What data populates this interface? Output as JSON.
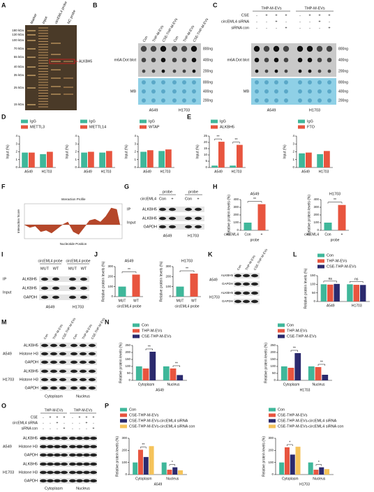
{
  "panel_letters": [
    "A",
    "B",
    "C",
    "D",
    "E",
    "F",
    "G",
    "H",
    "I",
    "J",
    "K",
    "L",
    "M",
    "N",
    "O",
    "P"
  ],
  "A": {
    "lanes": [
      "Marker",
      "Input",
      "circEML4 probe",
      "NC probe"
    ],
    "markers": [
      "180 kDa",
      "130 kDa",
      "100 kDa",
      "70 kDa",
      "55 kDa",
      "40 kDa",
      "35 kDa",
      "25 kDa",
      "15 kDa"
    ],
    "band_label": "ALKBH5"
  },
  "B": {
    "columns": [
      "Con",
      "THP-M-EVs",
      "CSE-THP-M-EVs",
      "Con",
      "THP-M-EVs",
      "CSE-THP-M-EVs"
    ],
    "rows": [
      "m6A Dot blot",
      "MB"
    ],
    "amounts": [
      "800ng",
      "400ng",
      "200ng",
      "800ng",
      "400ng",
      "200ng"
    ],
    "cells": [
      "A549",
      "H1703"
    ]
  },
  "C": {
    "groups": [
      "THP-M-EVs",
      "THP-M-EVs"
    ],
    "conditions": [
      {
        "label": "CSE",
        "signs": [
          "-",
          "+",
          "+",
          "+",
          "-",
          "+",
          "+",
          "+"
        ]
      },
      {
        "label": "circEML4 siRNA",
        "signs": [
          "-",
          "-",
          "+",
          "-",
          "-",
          "-",
          "+",
          "-"
        ]
      },
      {
        "label": "siRNA con",
        "signs": [
          "-",
          "-",
          "-",
          "+",
          "-",
          "-",
          "-",
          "+"
        ]
      }
    ],
    "rows": [
      "m6A Dot blot",
      "MB"
    ],
    "amounts": [
      "800ng",
      "400ng",
      "200ng",
      "800ng",
      "400ng",
      "200ng"
    ],
    "cells": [
      "A549",
      "H1703"
    ]
  },
  "G": {
    "headers": [
      "probe",
      "probe"
    ],
    "condition": "circEML4",
    "lanes": [
      "Con",
      "+",
      "Con",
      "+"
    ],
    "sections": [
      "IP",
      "Input"
    ],
    "bands": [
      "ALKBH5",
      "ALKBH5",
      "GAPDH"
    ],
    "cells": [
      "A549",
      "H1703"
    ]
  },
  "I": {
    "headers": [
      "circEML4 probe",
      "circEML4 probe"
    ],
    "lanes": [
      "MUT",
      "WT",
      "MUT",
      "WT"
    ],
    "sections": [
      "IP",
      "Input"
    ],
    "bands": [
      "ALKBH5",
      "ALKBH5",
      "GAPDH"
    ],
    "cells": [
      "A549",
      "H1703"
    ]
  },
  "K": {
    "lanes": [
      "Con",
      "THP-M-EVs",
      "CSE-THP-M-EVs"
    ],
    "cells": [
      "A549",
      "H1703"
    ],
    "bands": [
      "ALKBH5",
      "GAPDH",
      "ALKBH5",
      "GAPDH"
    ]
  },
  "M": {
    "lanes": [
      "Con",
      "THP-M-EVs",
      "CSE-THP-M-EVs",
      "Con",
      "THP-M-EVs",
      "CSE-THP-M-EVs"
    ],
    "cells": [
      "A549",
      "H1703"
    ],
    "bands": [
      "ALKBH5",
      "Histone H3",
      "GAPDH",
      "ALKBH5",
      "Histone H3",
      "GAPDH"
    ],
    "fractions": [
      "Cytoplasm",
      "Nucleus"
    ]
  },
  "O": {
    "groups": [
      "THP-M-EVs",
      "THP-M-EVs"
    ],
    "conditions": [
      {
        "label": "CSE",
        "signs": [
          "-",
          "+",
          "+",
          "+",
          "-",
          "+",
          "+",
          "+"
        ]
      },
      {
        "label": "circEML4 siRNA",
        "signs": [
          "-",
          "-",
          "+",
          "-",
          "-",
          "-",
          "+",
          "-"
        ]
      },
      {
        "label": "siRNA con",
        "signs": [
          "-",
          "-",
          "-",
          "+",
          "-",
          "-",
          "-",
          "+"
        ]
      }
    ],
    "cells": [
      "A549",
      "H1703"
    ],
    "bands": [
      "ALKBH5",
      "Histone H3",
      "GAPDH",
      "ALKBH5",
      "Histone H3",
      "GAPDH"
    ],
    "fractions": [
      "Cytoplasm",
      "Nucleus"
    ]
  },
  "chart_data": [
    {
      "type": "bar",
      "ylabel": "Input (%)",
      "categories": [
        "A549",
        "H1703"
      ],
      "series": [
        {
          "name": "IgG",
          "color": "#3fb79a",
          "values": [
            1.9,
            1.7
          ]
        },
        {
          "name": "METTL3",
          "color": "#e8553f",
          "values": [
            1.9,
            2.0
          ]
        }
      ],
      "ylim": [
        0,
        4
      ],
      "yticks": [
        0,
        1,
        2,
        3,
        4
      ]
    },
    {
      "type": "bar",
      "ylabel": "Input (%)",
      "categories": [
        "A549",
        "H1703"
      ],
      "series": [
        {
          "name": "IgG",
          "color": "#3fb79a",
          "values": [
            1.9,
            1.9
          ]
        },
        {
          "name": "METTL14",
          "color": "#e8553f",
          "values": [
            2.0,
            2.1
          ]
        }
      ],
      "ylim": [
        0,
        4
      ],
      "yticks": [
        0,
        1,
        2,
        3,
        4
      ]
    },
    {
      "type": "bar",
      "ylabel": "Input (%)",
      "categories": [
        "A549",
        "H1703"
      ],
      "series": [
        {
          "name": "IgG",
          "color": "#3fb79a",
          "values": [
            2.0,
            2.1
          ]
        },
        {
          "name": "WTAP",
          "color": "#e8553f",
          "values": [
            2.2,
            2.3
          ]
        }
      ],
      "ylim": [
        0,
        4
      ],
      "yticks": [
        0,
        1,
        2,
        3,
        4
      ]
    },
    {
      "type": "bar",
      "ylabel": "Input (%)",
      "categories": [
        "A549",
        "H1703"
      ],
      "series": [
        {
          "name": "IgG",
          "color": "#3fb79a",
          "values": [
            1.5,
            1.5
          ]
        },
        {
          "name": "ALKBH5",
          "color": "#e8553f",
          "values": [
            20.5,
            18
          ]
        }
      ],
      "ylim": [
        0,
        25
      ],
      "yticks": [
        0,
        5,
        10,
        15,
        20,
        25
      ],
      "significance": [
        "**",
        "**"
      ]
    },
    {
      "type": "bar",
      "ylabel": "Input (%)",
      "categories": [
        "A549",
        "H1703"
      ],
      "series": [
        {
          "name": "IgG",
          "color": "#3fb79a",
          "values": [
            1.8,
            1.7
          ]
        },
        {
          "name": "FTO",
          "color": "#e8553f",
          "values": [
            1.9,
            2.1
          ]
        }
      ],
      "ylim": [
        0,
        4
      ],
      "yticks": [
        0,
        1,
        2,
        3,
        4
      ]
    },
    {
      "type": "area",
      "title": "Interaction Profile",
      "xlabel": "Nucleotide Position",
      "ylabel": "Interaction Score",
      "color": "#b5472a",
      "x": [
        0,
        50,
        100,
        150,
        200,
        250,
        300,
        350,
        400,
        450,
        500,
        550,
        600,
        650,
        700,
        750,
        800,
        850,
        880
      ],
      "y": [
        0,
        -0.2,
        -0.1,
        -0.5,
        -0.4,
        -0.6,
        -0.3,
        0,
        0.2,
        -0.5,
        -0.7,
        -0.2,
        0.3,
        0.4,
        0.2,
        0.6,
        1.2,
        1.1,
        0
      ],
      "xlim": [
        0,
        900
      ],
      "ylim": [
        -1,
        1.5
      ]
    },
    {
      "type": "bar",
      "title": "A549",
      "ylabel": "Relative protein levels (%)",
      "categories": [
        "Con",
        "+"
      ],
      "values": [
        100,
        340
      ],
      "colors": [
        "#3fb79a",
        "#e8553f"
      ],
      "row_label": "circEML4",
      "xlabel": "probe",
      "ylim": [
        0,
        400
      ],
      "yticks": [
        0,
        100,
        200,
        300,
        400
      ],
      "significance": [
        "**"
      ]
    },
    {
      "type": "bar",
      "title": "H1703",
      "ylabel": "Relative protein levels (%)",
      "categories": [
        "Con",
        "+"
      ],
      "values": [
        100,
        330
      ],
      "colors": [
        "#3fb79a",
        "#e8553f"
      ],
      "row_label": "circEML4",
      "xlabel": "probe",
      "ylim": [
        0,
        400
      ],
      "yticks": [
        0,
        100,
        200,
        300,
        400
      ],
      "significance": [
        "**"
      ]
    },
    {
      "type": "bar",
      "title": "A549",
      "ylabel": "Relative protein levels (%)",
      "categories": [
        "MUT",
        "WT"
      ],
      "values": [
        100,
        220
      ],
      "colors": [
        "#3fb79a",
        "#e8553f"
      ],
      "xlabel": "circEML4 probe",
      "ylim": [
        0,
        300
      ],
      "yticks": [
        0,
        100,
        200,
        300
      ],
      "significance": [
        "**"
      ]
    },
    {
      "type": "bar",
      "title": "H1703",
      "ylabel": "Relative protein levels (%)",
      "categories": [
        "MUT",
        "WT"
      ],
      "values": [
        100,
        230
      ],
      "colors": [
        "#3fb79a",
        "#e8553f"
      ],
      "xlabel": "circEML4 probe",
      "ylim": [
        0,
        300
      ],
      "yticks": [
        0,
        100,
        200,
        300
      ],
      "significance": [
        "**"
      ]
    },
    {
      "type": "bar",
      "ylabel": "Relative protein levels (%)",
      "categories": [
        "A549",
        "H1703"
      ],
      "series": [
        {
          "name": "Con",
          "color": "#3fb79a",
          "values": [
            100,
            100
          ]
        },
        {
          "name": "THP-M-EVs",
          "color": "#e8553f",
          "values": [
            98,
            97
          ]
        },
        {
          "name": "CSE-THP-M-EVs",
          "color": "#2b2a6e",
          "values": [
            102,
            96
          ]
        }
      ],
      "ylim": [
        0,
        150
      ],
      "yticks": [
        0,
        50,
        100,
        150
      ],
      "significance": [
        "ns",
        "ns"
      ]
    },
    {
      "type": "bar",
      "ylabel": "Relative protein levels (%)",
      "xlabel": "A549",
      "categories": [
        "Cytoplasm",
        "Nucleus"
      ],
      "series": [
        {
          "name": "Con",
          "color": "#3fb79a",
          "values": [
            100,
            100
          ]
        },
        {
          "name": "THP-M-EVs",
          "color": "#e8553f",
          "values": [
            85,
            85
          ]
        },
        {
          "name": "CSE-THP-M-EVs",
          "color": "#2b2a6e",
          "values": [
            205,
            38
          ]
        }
      ],
      "ylim": [
        0,
        250
      ],
      "yticks": [
        0,
        50,
        100,
        150,
        200,
        250
      ],
      "significance": [
        "**",
        "**"
      ]
    },
    {
      "type": "bar",
      "ylabel": "Relative protein levels (%)",
      "xlabel": "H1703",
      "categories": [
        "Cytoplasm",
        "Nucleus"
      ],
      "series": [
        {
          "name": "Con",
          "color": "#3fb79a",
          "values": [
            100,
            100
          ]
        },
        {
          "name": "THP-M-EVs",
          "color": "#e8553f",
          "values": [
            90,
            95
          ]
        },
        {
          "name": "CSE-THP-M-EVs",
          "color": "#2b2a6e",
          "values": [
            195,
            40
          ]
        }
      ],
      "ylim": [
        0,
        250
      ],
      "yticks": [
        0,
        50,
        100,
        150,
        200,
        250
      ],
      "significance": [
        "**",
        "**"
      ]
    },
    {
      "type": "bar",
      "ylabel": "Relative protein levels (%)",
      "xlabel": "A549",
      "categories": [
        "Cytoplasm",
        "Nucleus"
      ],
      "series": [
        {
          "name": "Con",
          "color": "#3fb79a",
          "values": [
            100,
            100
          ]
        },
        {
          "name": "CSE-THP-M-EVs",
          "color": "#e8553f",
          "values": [
            205,
            40
          ]
        },
        {
          "name": "CSE-THP-M-EVs-circEML4 siRNA",
          "color": "#2b2a6e",
          "values": [
            145,
            60
          ]
        },
        {
          "name": "CSE-THP-M-EVs-circEML4 siRNA con",
          "color": "#f5c35a",
          "values": [
            235,
            35
          ]
        }
      ],
      "ylim": [
        0,
        300
      ],
      "yticks": [
        0,
        100,
        200,
        300
      ],
      "significance": [
        "**",
        "*"
      ]
    },
    {
      "type": "bar",
      "ylabel": "Relative protein levels (%)",
      "xlabel": "H1703",
      "categories": [
        "Cytoplasm",
        "Nucleus"
      ],
      "series": [
        {
          "name": "Con",
          "color": "#3fb79a",
          "values": [
            100,
            100
          ]
        },
        {
          "name": "CSE-THP-M-EVs",
          "color": "#e8553f",
          "values": [
            225,
            40
          ]
        },
        {
          "name": "CSE-THP-M-EVs-circEML4 siRNA",
          "color": "#2b2a6e",
          "values": [
            165,
            60
          ]
        },
        {
          "name": "CSE-THP-M-EVs-circEML4 siRNA con",
          "color": "#f5c35a",
          "values": [
            230,
            45
          ]
        }
      ],
      "ylim": [
        0,
        300
      ],
      "yticks": [
        0,
        100,
        200,
        300
      ],
      "significance": [
        "*",
        "*"
      ]
    }
  ]
}
